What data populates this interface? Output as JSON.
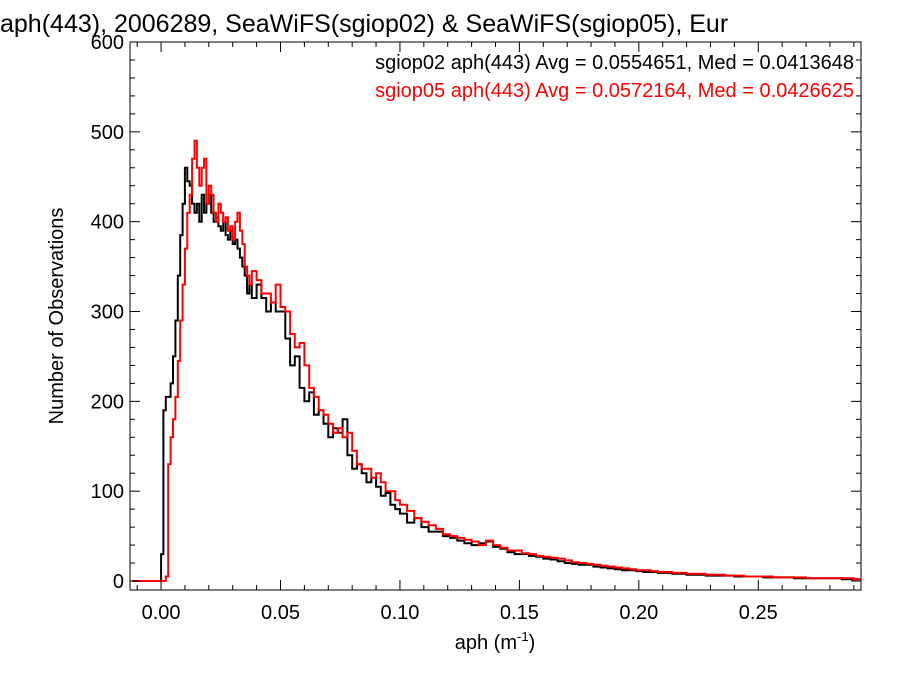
{
  "chart_data": {
    "type": "line",
    "title": "aph(443), 2006289, SeaWiFS(sgiop02) & SeaWiFS(sgiop05), Eur",
    "xlabel": "aph (m",
    "xlabel_sup": "-1",
    "xlabel_close": ")",
    "ylabel": "Number of Observations",
    "xlim": [
      -0.013,
      0.293
    ],
    "ylim": [
      -10,
      600
    ],
    "xticks": [
      0.0,
      0.05,
      0.1,
      0.15,
      0.2,
      0.25
    ],
    "xtick_labels": [
      "0.00",
      "0.05",
      "0.10",
      "0.15",
      "0.20",
      "0.25"
    ],
    "yticks": [
      0,
      100,
      200,
      300,
      400,
      500,
      600
    ],
    "ytick_labels": [
      "0",
      "100",
      "200",
      "300",
      "400",
      "500",
      "600"
    ],
    "grid": false,
    "legend_position": "top-right",
    "annotations": [
      {
        "text": "sgiop02 aph(443) Avg = 0.0554651, Med = 0.0413648",
        "color": "#000000"
      },
      {
        "text": "sgiop05 aph(443) Avg = 0.0572164, Med = 0.0426625",
        "color": "#ff0000"
      }
    ],
    "series": [
      {
        "color": "#000000",
        "x": [
          -0.012,
          -0.004,
          -0.001,
          0.0,
          0.001,
          0.002,
          0.004,
          0.005,
          0.006,
          0.007,
          0.008,
          0.009,
          0.01,
          0.011,
          0.012,
          0.013,
          0.014,
          0.015,
          0.016,
          0.017,
          0.018,
          0.019,
          0.02,
          0.021,
          0.022,
          0.023,
          0.024,
          0.025,
          0.026,
          0.027,
          0.028,
          0.029,
          0.03,
          0.031,
          0.032,
          0.033,
          0.034,
          0.035,
          0.036,
          0.037,
          0.038,
          0.04,
          0.042,
          0.044,
          0.046,
          0.048,
          0.05,
          0.052,
          0.054,
          0.056,
          0.058,
          0.06,
          0.062,
          0.064,
          0.066,
          0.068,
          0.07,
          0.072,
          0.074,
          0.076,
          0.078,
          0.08,
          0.082,
          0.084,
          0.086,
          0.088,
          0.09,
          0.092,
          0.094,
          0.096,
          0.098,
          0.1,
          0.103,
          0.106,
          0.109,
          0.112,
          0.115,
          0.118,
          0.121,
          0.124,
          0.127,
          0.13,
          0.133,
          0.136,
          0.139,
          0.142,
          0.145,
          0.148,
          0.151,
          0.154,
          0.157,
          0.16,
          0.163,
          0.166,
          0.169,
          0.172,
          0.175,
          0.178,
          0.181,
          0.184,
          0.187,
          0.19,
          0.193,
          0.196,
          0.199,
          0.202,
          0.205,
          0.208,
          0.211,
          0.214,
          0.217,
          0.22,
          0.224,
          0.228,
          0.232,
          0.236,
          0.24,
          0.244,
          0.248,
          0.252,
          0.256,
          0.26,
          0.265,
          0.27,
          0.275,
          0.28,
          0.285,
          0.29
        ],
        "y": [
          0,
          0,
          0,
          30,
          190,
          205,
          220,
          250,
          290,
          340,
          385,
          420,
          460,
          445,
          440,
          420,
          410,
          420,
          400,
          430,
          410,
          420,
          430,
          410,
          400,
          405,
          395,
          390,
          400,
          385,
          380,
          390,
          375,
          380,
          370,
          360,
          350,
          340,
          320,
          330,
          315,
          330,
          315,
          300,
          310,
          300,
          300,
          270,
          240,
          250,
          215,
          200,
          210,
          185,
          190,
          175,
          160,
          170,
          165,
          180,
          140,
          125,
          130,
          120,
          110,
          115,
          105,
          95,
          98,
          85,
          80,
          75,
          65,
          70,
          60,
          55,
          55,
          50,
          48,
          45,
          42,
          40,
          42,
          44,
          38,
          36,
          32,
          30,
          30,
          28,
          27,
          25,
          24,
          22,
          20,
          19,
          18,
          18,
          16,
          15,
          14,
          13,
          12,
          12,
          11,
          10,
          10,
          9,
          9,
          8,
          8,
          7,
          7,
          6,
          6,
          6,
          5,
          5,
          5,
          4,
          4,
          4,
          3,
          3,
          3,
          3,
          2,
          2
        ]
      },
      {
        "color": "#ff0000",
        "x": [
          -0.012,
          -0.004,
          0.0,
          0.002,
          0.003,
          0.004,
          0.005,
          0.006,
          0.007,
          0.008,
          0.009,
          0.01,
          0.011,
          0.012,
          0.013,
          0.014,
          0.015,
          0.016,
          0.017,
          0.018,
          0.019,
          0.02,
          0.021,
          0.022,
          0.023,
          0.024,
          0.025,
          0.026,
          0.027,
          0.028,
          0.029,
          0.03,
          0.031,
          0.032,
          0.033,
          0.034,
          0.035,
          0.036,
          0.037,
          0.038,
          0.04,
          0.042,
          0.044,
          0.046,
          0.048,
          0.05,
          0.052,
          0.054,
          0.056,
          0.058,
          0.06,
          0.062,
          0.064,
          0.066,
          0.068,
          0.07,
          0.072,
          0.074,
          0.076,
          0.078,
          0.08,
          0.082,
          0.084,
          0.086,
          0.088,
          0.09,
          0.092,
          0.094,
          0.096,
          0.098,
          0.1,
          0.103,
          0.106,
          0.109,
          0.112,
          0.115,
          0.118,
          0.121,
          0.124,
          0.127,
          0.13,
          0.133,
          0.136,
          0.139,
          0.142,
          0.145,
          0.148,
          0.151,
          0.154,
          0.157,
          0.16,
          0.163,
          0.166,
          0.169,
          0.172,
          0.175,
          0.178,
          0.181,
          0.184,
          0.187,
          0.19,
          0.193,
          0.196,
          0.199,
          0.202,
          0.205,
          0.208,
          0.211,
          0.214,
          0.217,
          0.22,
          0.224,
          0.228,
          0.232,
          0.236,
          0.24,
          0.244,
          0.248,
          0.252,
          0.256,
          0.26,
          0.265,
          0.27,
          0.275,
          0.28,
          0.285,
          0.29
        ],
        "y": [
          0,
          0,
          0,
          5,
          130,
          160,
          180,
          205,
          245,
          290,
          330,
          370,
          410,
          430,
          470,
          490,
          460,
          440,
          460,
          470,
          420,
          440,
          430,
          410,
          400,
          420,
          410,
          400,
          405,
          390,
          395,
          380,
          400,
          410,
          390,
          375,
          350,
          340,
          330,
          345,
          335,
          320,
          320,
          310,
          330,
          305,
          300,
          275,
          260,
          265,
          240,
          215,
          205,
          190,
          185,
          175,
          165,
          170,
          160,
          165,
          145,
          130,
          125,
          125,
          115,
          120,
          110,
          100,
          100,
          90,
          85,
          78,
          70,
          66,
          62,
          58,
          52,
          50,
          48,
          46,
          44,
          40,
          45,
          40,
          37,
          34,
          34,
          31,
          30,
          28,
          27,
          26,
          25,
          23,
          21,
          20,
          19,
          18,
          17,
          16,
          15,
          14,
          13,
          12,
          12,
          11,
          10,
          10,
          9,
          9,
          8,
          8,
          7,
          7,
          6,
          6,
          5,
          5,
          5,
          4,
          4,
          4,
          3,
          3,
          3,
          3,
          2
        ]
      }
    ]
  }
}
